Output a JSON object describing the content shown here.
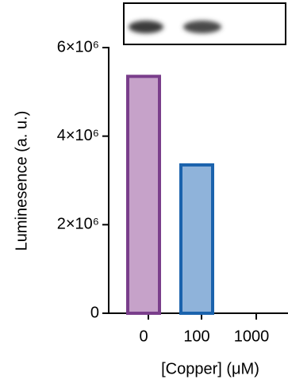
{
  "chart_data": {
    "type": "bar",
    "categories": [
      "0",
      "100",
      "1000"
    ],
    "values": [
      5350000,
      3350000,
      0
    ],
    "colors": [
      "#c6a2c9",
      "#8fb3da"
    ],
    "edge_colors": [
      "#7a3e8b",
      "#1b63ad"
    ],
    "ylim": [
      0,
      6000000
    ],
    "yticks": [
      {
        "value": 0,
        "label": "0"
      },
      {
        "value": 2000000,
        "label": "2×10⁶"
      },
      {
        "value": 4000000,
        "label": "4×10⁶"
      },
      {
        "value": 6000000,
        "label": "6×10⁶"
      }
    ],
    "xlabel": "[Copper] (μM)",
    "ylabel": "Luminesence  (a. u.)"
  }
}
